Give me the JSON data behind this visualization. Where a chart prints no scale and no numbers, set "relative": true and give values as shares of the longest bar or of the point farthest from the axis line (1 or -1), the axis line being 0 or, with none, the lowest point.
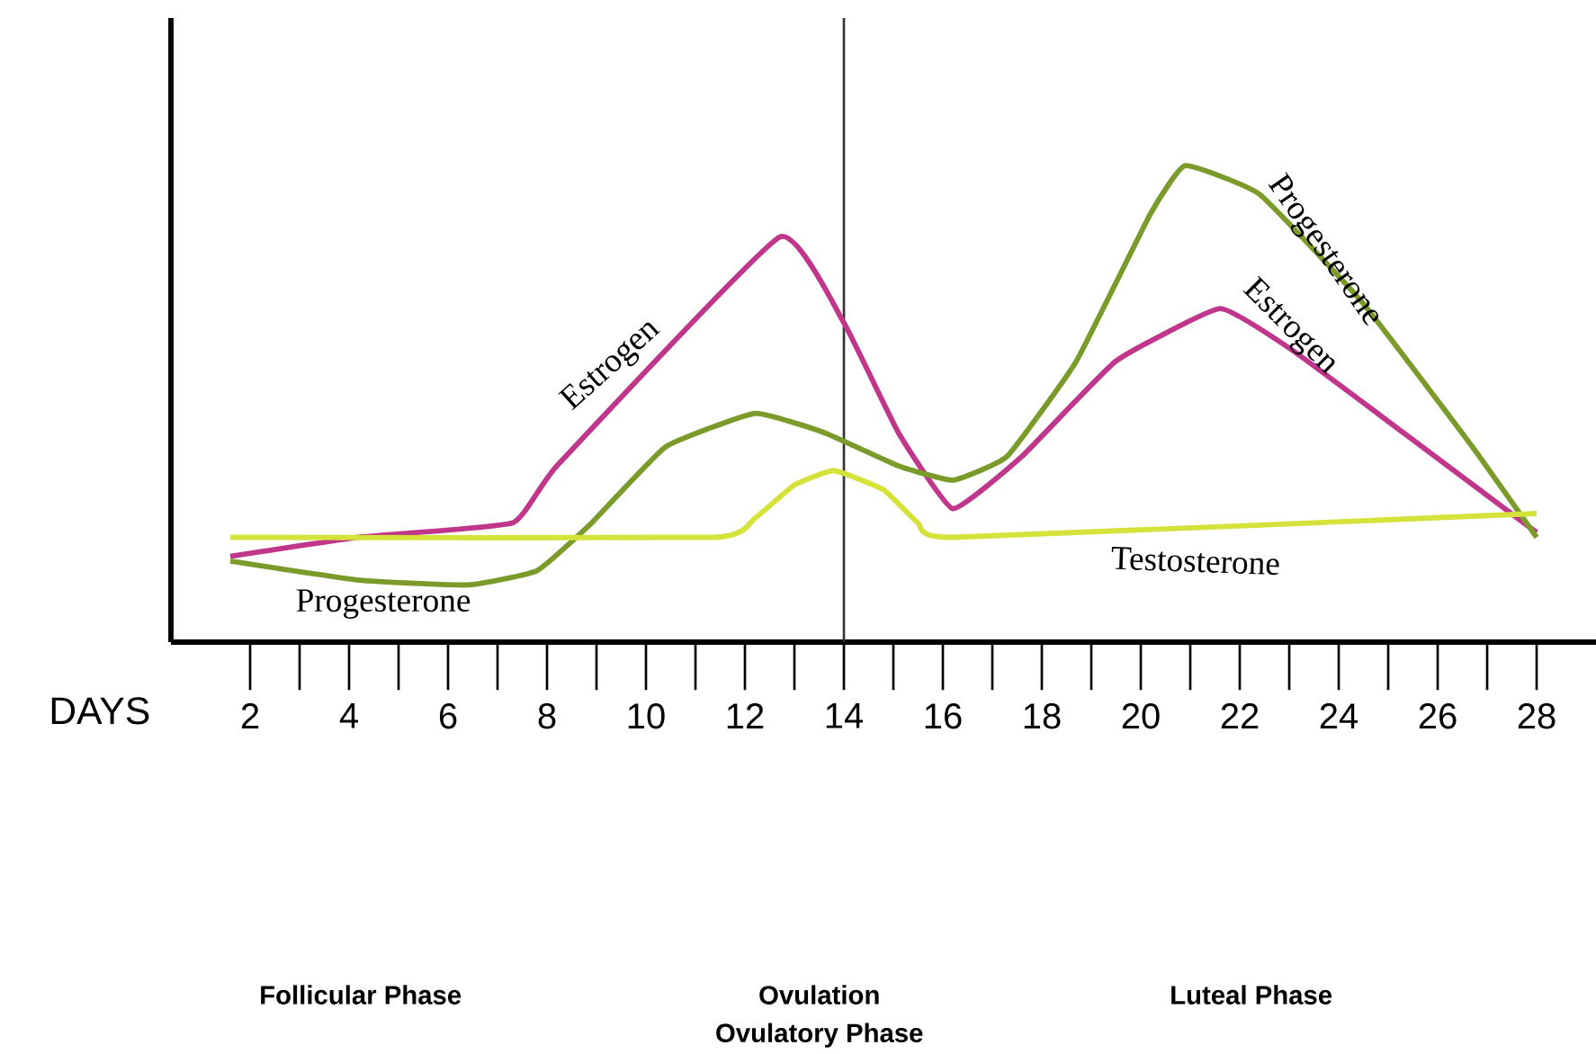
{
  "chart_data": {
    "type": "line",
    "relative": true,
    "xlabel": "DAYS",
    "xlim": [
      0.4,
      29.2
    ],
    "xticks": [
      2,
      4,
      6,
      8,
      10,
      12,
      14,
      16,
      18,
      20,
      22,
      24,
      26,
      28
    ],
    "series": [
      {
        "color": "#c0368a",
        "x": [
          1.6,
          4.2,
          7.3,
          8.2,
          12.7,
          14,
          15.1,
          16.2,
          17.6,
          19.5,
          21.6,
          23.1,
          25.3,
          28
        ],
        "values": [
          0.18,
          0.22,
          0.25,
          0.37,
          0.85,
          0.67,
          0.44,
          0.28,
          0.39,
          0.59,
          0.7,
          0.61,
          0.44,
          0.23
        ]
      },
      {
        "color": "#7a9a2a",
        "x": [
          1.6,
          4.2,
          6.4,
          7.8,
          8.9,
          10.4,
          12.2,
          13.6,
          15.1,
          16.2,
          17.3,
          18.7,
          20.2,
          20.9,
          22.4,
          24.5,
          26.7,
          28
        ],
        "values": [
          0.17,
          0.13,
          0.12,
          0.15,
          0.25,
          0.41,
          0.48,
          0.44,
          0.37,
          0.34,
          0.39,
          0.59,
          0.9,
          1,
          0.94,
          0.71,
          0.41,
          0.22
        ]
      },
      {
        "color": "#d4e23a",
        "x": [
          1.6,
          11.4,
          12.2,
          13,
          13.8,
          14.8,
          15.5,
          16.2,
          28
        ],
        "values": [
          0.22,
          0.22,
          0.26,
          0.33,
          0.36,
          0.32,
          0.25,
          0.22,
          0.27
        ]
      }
    ],
    "ref_lines": [
      {
        "axis": "x",
        "value": 14,
        "color": "#333333"
      }
    ],
    "annotations": [
      "Estrogen",
      "Progesterone",
      "Progesterone",
      "Estrogen",
      "Testosterone",
      "Follicular Phase",
      "Ovulation",
      "Ovulatory Phase",
      "Luteal Phase"
    ]
  }
}
